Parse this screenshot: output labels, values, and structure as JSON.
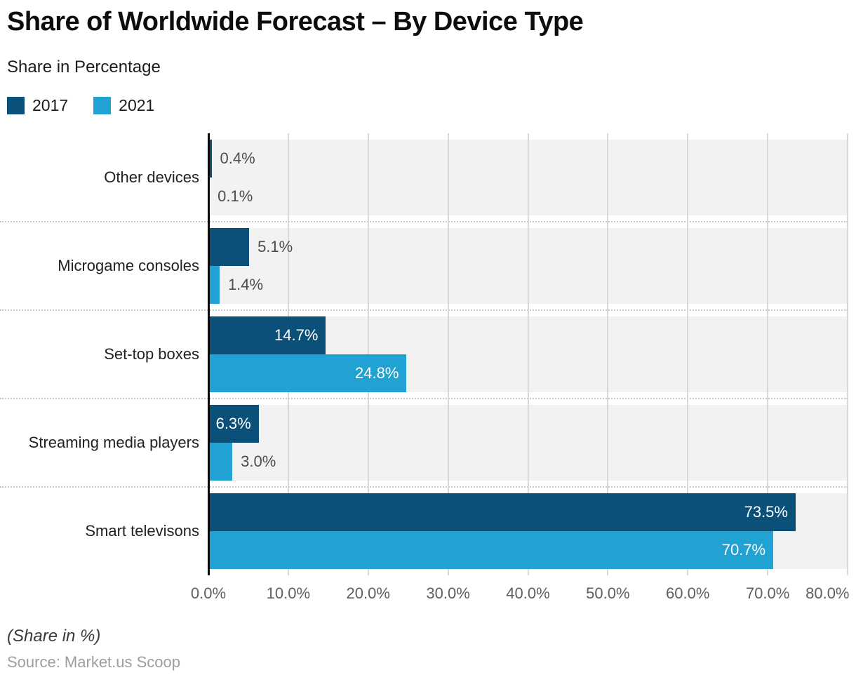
{
  "header": {
    "title": "Share of Worldwide Forecast – By Device Type",
    "subtitle": "Share in Percentage"
  },
  "legend": {
    "items": [
      {
        "label": "2017",
        "color": "#0a5079"
      },
      {
        "label": "2021",
        "color": "#20a2d2"
      }
    ]
  },
  "footer": {
    "note": "(Share in %)",
    "source": "Source: Market.us Scoop"
  },
  "colors": {
    "series_2017": "#0a5079",
    "series_2021": "#20a2d2",
    "row_band": "#f2f2f2",
    "gridline": "#d9d9d9",
    "separator": "#c9c9c9",
    "axis_line": "#0a0a0a",
    "label_inside": "#ffffff",
    "label_outside": "#4d4d4d",
    "tick_text": "#5f5f5f"
  },
  "chart_data": {
    "type": "bar",
    "orientation": "horizontal",
    "title": "Share of Worldwide Forecast – By Device Type",
    "subtitle": "Share in Percentage",
    "categories": [
      "Other devices",
      "Microgame consoles",
      "Set-top boxes",
      "Streaming media players",
      "Smart televisons"
    ],
    "series": [
      {
        "name": "2017",
        "color": "#0a5079",
        "values": [
          0.4,
          5.1,
          14.7,
          6.3,
          73.5
        ],
        "labels": [
          "0.4%",
          "5.1%",
          "14.7%",
          "6.3%",
          "73.5%"
        ]
      },
      {
        "name": "2021",
        "color": "#20a2d2",
        "values": [
          0.1,
          1.4,
          24.8,
          3.0,
          70.7
        ],
        "labels": [
          "0.1%",
          "1.4%",
          "24.8%",
          "3.0%",
          "70.7%"
        ]
      }
    ],
    "xlim": [
      0,
      80
    ],
    "xticks": [
      "0.0%",
      "10.0%",
      "20.0%",
      "30.0%",
      "40.0%",
      "50.0%",
      "60.0%",
      "70.0%",
      "80.0%"
    ],
    "grid": true,
    "legend_position": "top-left"
  }
}
